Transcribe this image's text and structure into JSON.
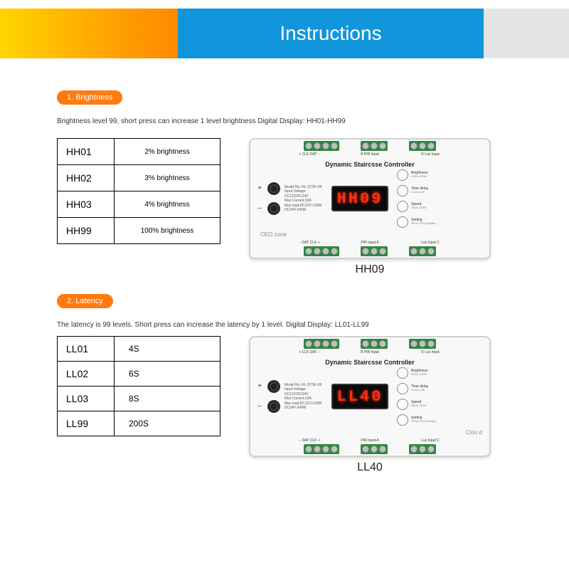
{
  "header": {
    "title": "Instructions",
    "gradient_colors": [
      "#ffd400",
      "#ff9500",
      "#ff5a00"
    ],
    "blue_band": "#1296db",
    "gray_band": "#e5e5e5"
  },
  "section1": {
    "pill": "1. Brightness",
    "desc": "Brightness level 99, short press can increase 1 level brightness Digital Display: HH01-HH99",
    "table": [
      {
        "code": "HH01",
        "value": "2% brightness"
      },
      {
        "code": "HH02",
        "value": "3% brightness"
      },
      {
        "code": "HH03",
        "value": "4% brightness"
      },
      {
        "code": "HH99",
        "value": "100% brightness"
      }
    ],
    "device_display": "HH09",
    "device_caption": "HH09",
    "brand_left": "CEO zone",
    "brand_right": ""
  },
  "section2": {
    "pill": "2. Latency",
    "desc": "The latency is 99 levels. Short press can increase the latency by 1 level. Digital Display: LL01-LL99",
    "table": [
      {
        "code": "LL01",
        "value": "4S"
      },
      {
        "code": "LL02",
        "value": "6S"
      },
      {
        "code": "LL03",
        "value": "8S"
      },
      {
        "code": "LL99",
        "value": "200S"
      }
    ],
    "device_display": "LL40",
    "device_caption": "LL40",
    "brand_left": "",
    "brand_right": "Clou d"
  },
  "device": {
    "title": "Dynamic Staircsse Controller",
    "spec_lines": [
      "Model No.:RL-STSF-09",
      "Input Voltage: DC12V/DC24V",
      "Max Current:10A",
      "Max load:DC12V-120W",
      "DC24V-240W"
    ],
    "top_term_labels_l": "+  CLK  DAT  −",
    "top_term_labels_r1": "B PIR Input",
    "top_term_labels_r2": "D Lux Input",
    "bot_term_labels_l": "−  DAT  CLK  +",
    "bot_term_labels_r1": "PIR Input A",
    "bot_term_labels_r2": "Lux Input C",
    "buttons": [
      {
        "label": "Brightness",
        "sub": "HH01-HH99"
      },
      {
        "label": "Time delay",
        "sub": "LL01-LL99"
      },
      {
        "label": "Speed",
        "sub": "SS01-SS99"
      },
      {
        "label": "Setting",
        "sub": "PP01-PP10 (Mode)"
      }
    ]
  },
  "colors": {
    "pill_bg": "#ff7a0f",
    "terminal_green": "#2a8a3a",
    "segment_red": "#ff3010",
    "device_bg": "#f8f8f8",
    "device_border": "#d0d0d0"
  }
}
